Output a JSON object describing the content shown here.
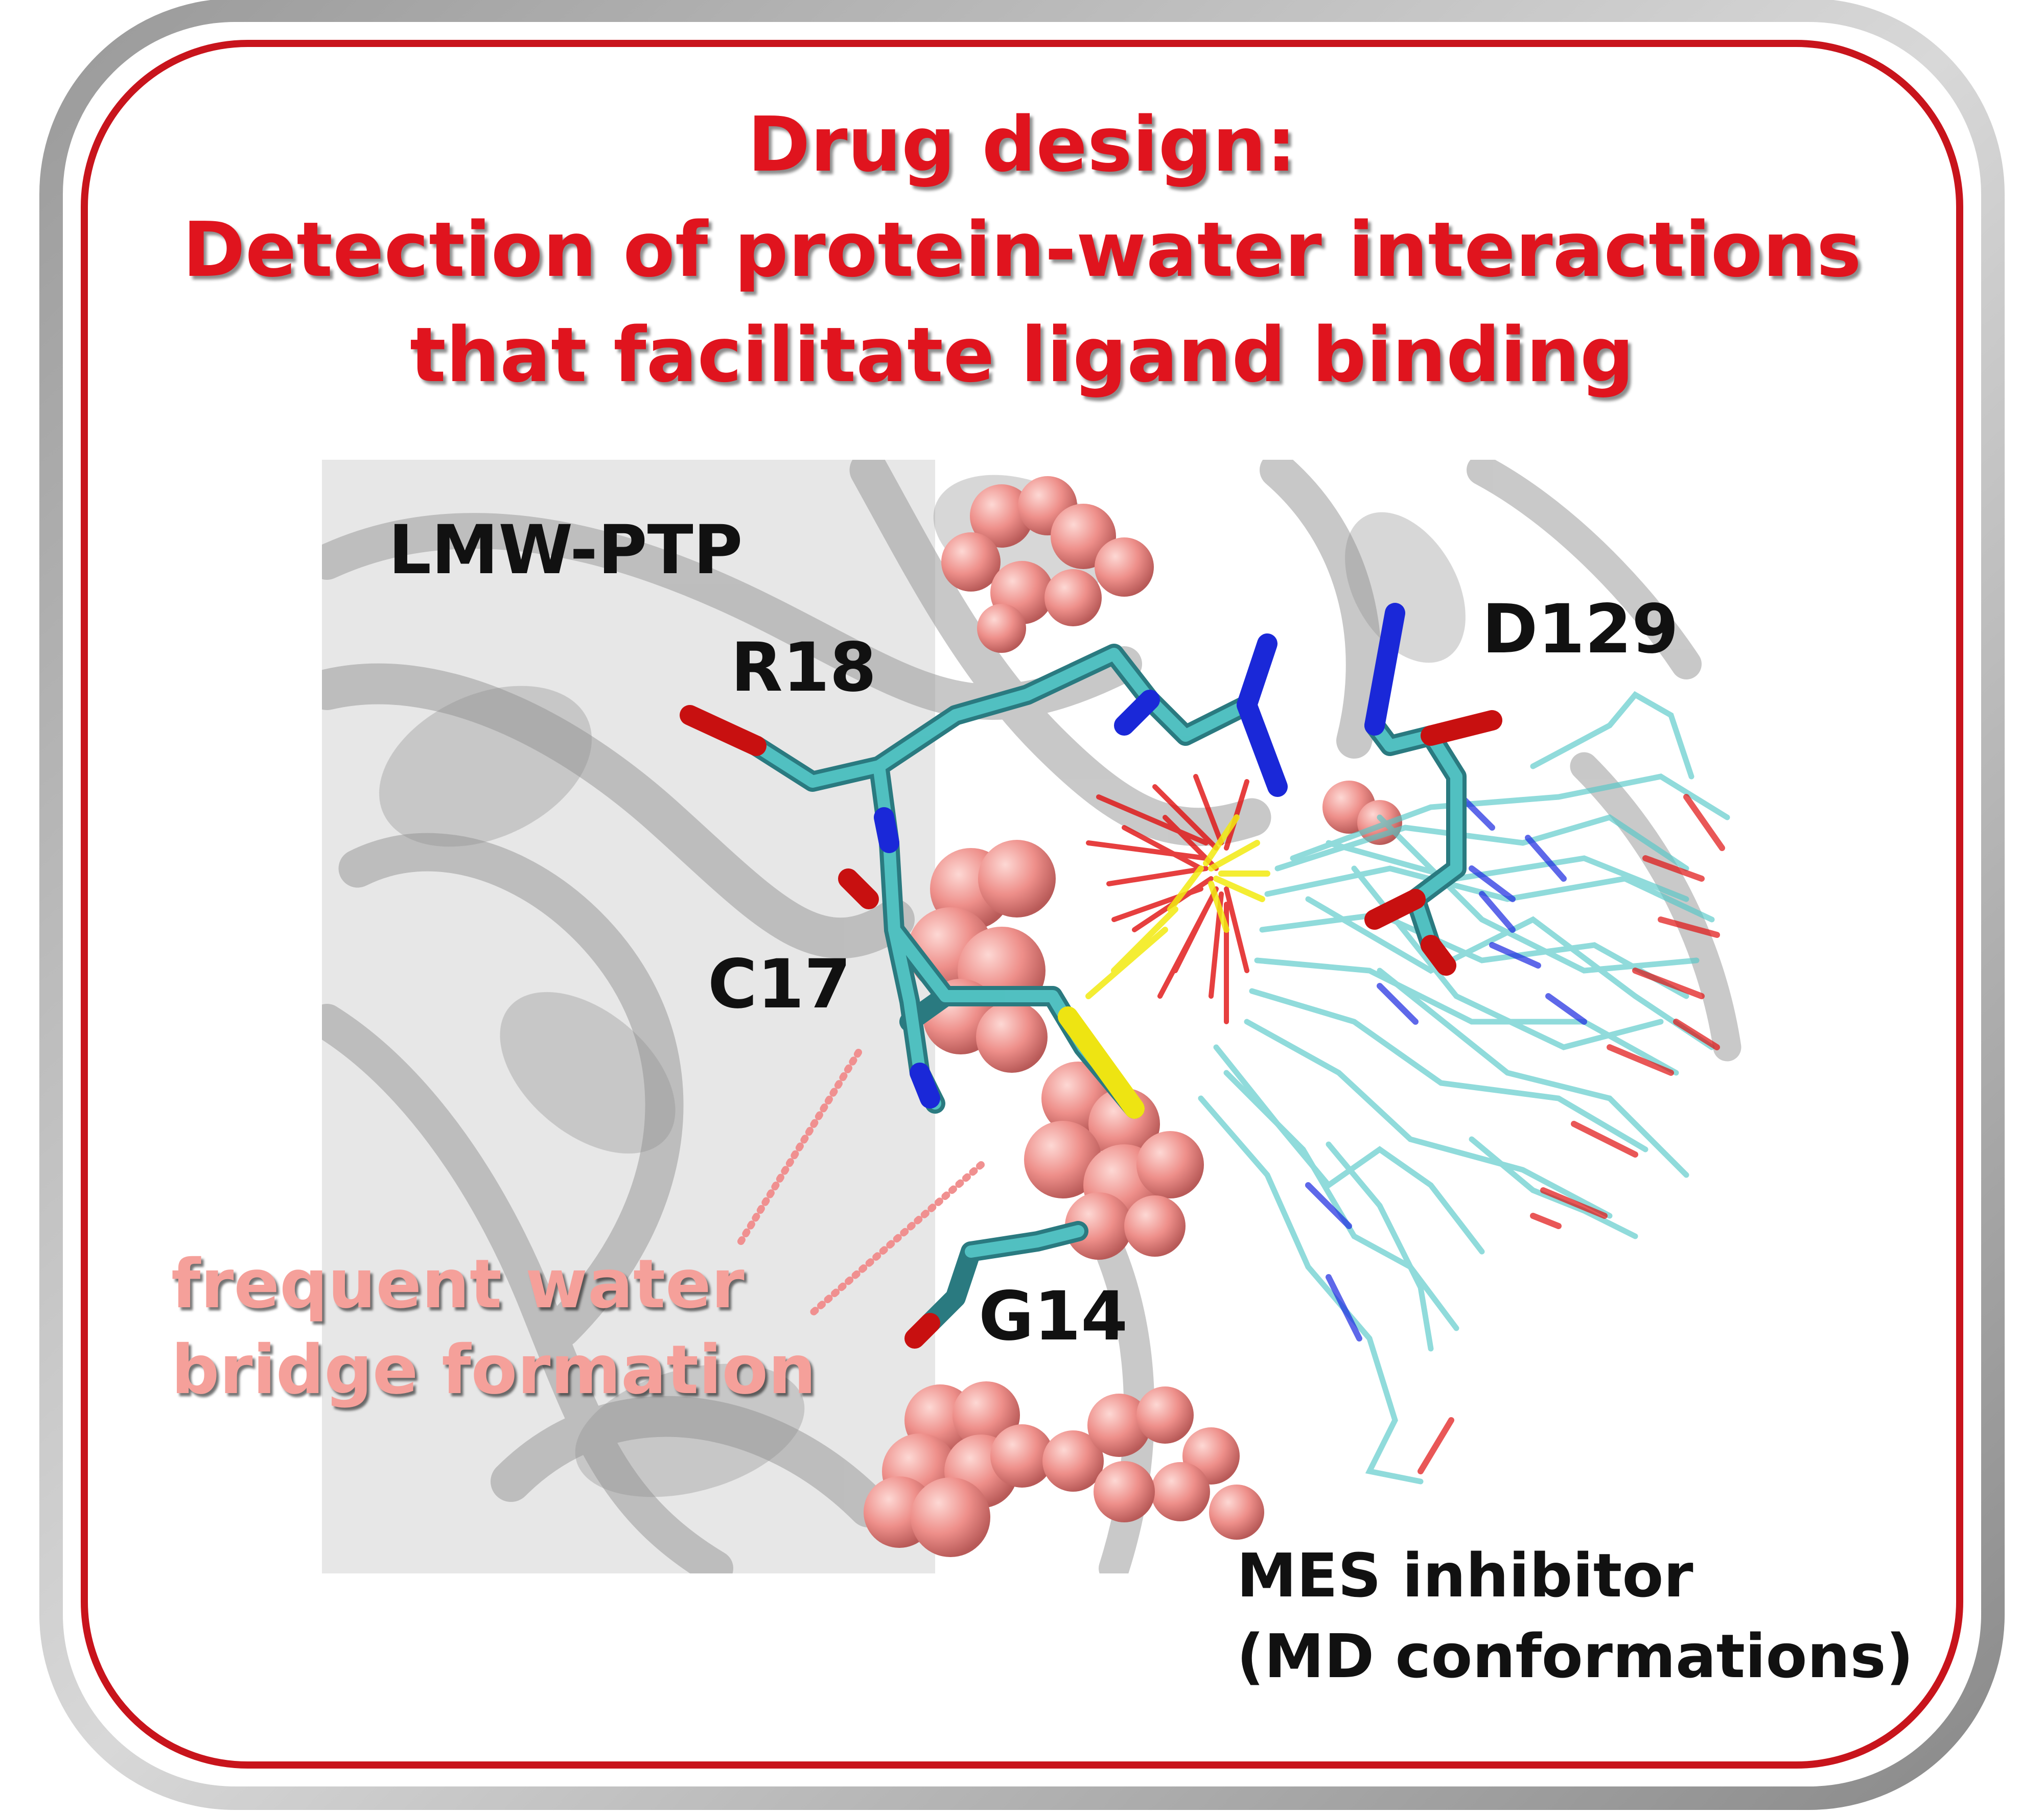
{
  "title": {
    "lines": [
      "Drug design:",
      "Detection of protein-water interactions",
      "that facilitate ligand binding"
    ]
  },
  "labels": {
    "protein": "LMW-PTP",
    "r18": "R18",
    "c17": "C17",
    "g14": "G14",
    "d129": "D129"
  },
  "water_note": {
    "lines": [
      "frequent water",
      "bridge formation"
    ]
  },
  "ligand_note": {
    "lines": [
      "MES inhibitor",
      "(MD conformations)"
    ]
  },
  "colors": {
    "frame": "#c8141c",
    "title": "#e0141e",
    "water": "#f09090",
    "carbon": "#3a9aa0",
    "oxygen": "#e01010",
    "nitrogen": "#1a28e0",
    "sulfur": "#f2ea10"
  }
}
